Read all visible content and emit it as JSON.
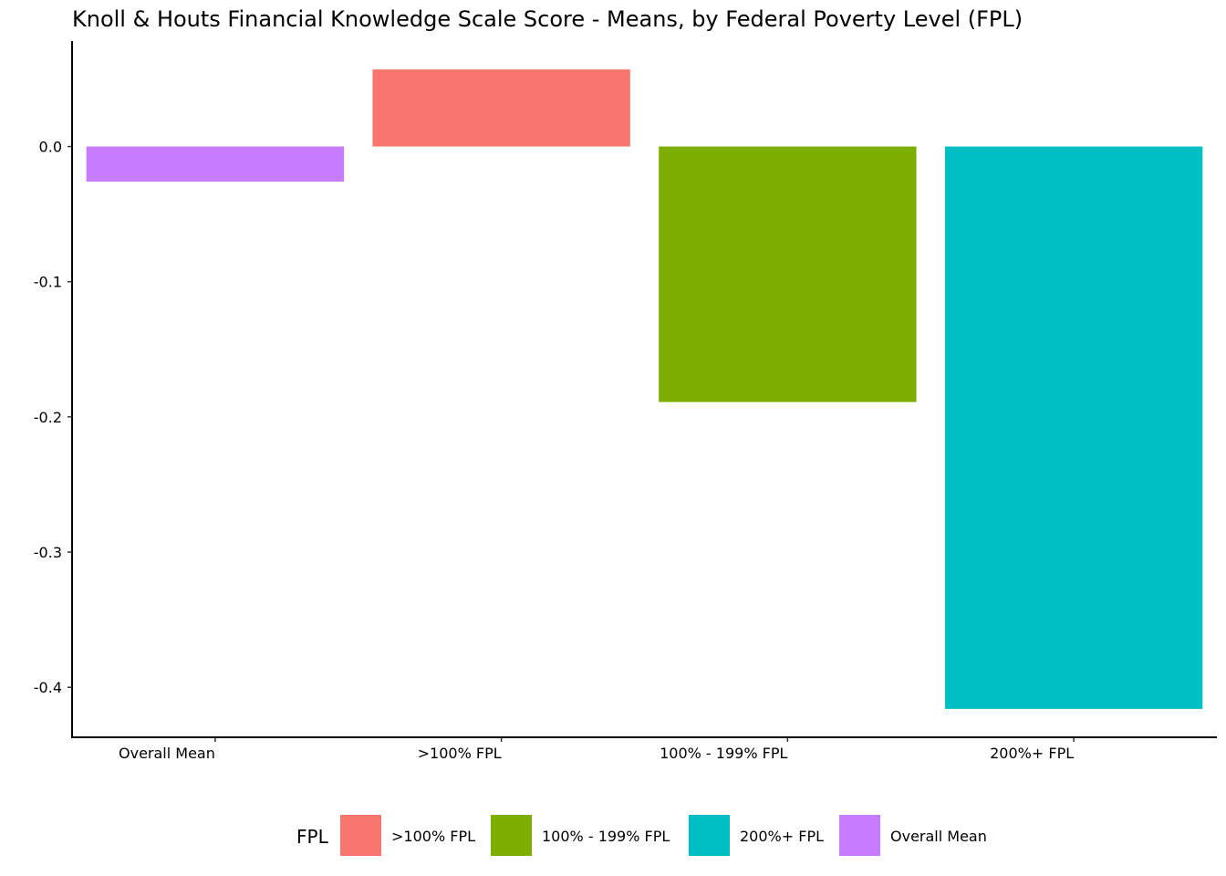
{
  "chart_data": {
    "type": "bar",
    "title": "Knoll & Houts Financial Knowledge Scale Score - Means, by Federal Poverty Level (FPL)",
    "xlabel": "",
    "ylabel": "",
    "categories": [
      "Overall Mean",
      ">100% FPL",
      "100% - 199% FPL",
      "200%+ FPL"
    ],
    "values": [
      -0.026,
      0.057,
      -0.189,
      -0.416
    ],
    "colors": [
      "#C77CFF",
      "#F8766D",
      "#7CAE00",
      "#00BFC4"
    ],
    "ylim": [
      -0.437,
      0.078
    ],
    "y_ticks": [
      0.0,
      -0.1,
      -0.2,
      -0.3,
      -0.4
    ],
    "y_tick_labels": [
      "0.0",
      "-0.1",
      "-0.2",
      "-0.3",
      "-0.4"
    ],
    "grid": false,
    "legend": {
      "title": "FPL",
      "position": "bottom",
      "entries": [
        {
          "label": ">100% FPL",
          "color": "#F8766D"
        },
        {
          "label": "100% - 199% FPL",
          "color": "#7CAE00"
        },
        {
          "label": "200%+ FPL",
          "color": "#00BFC4"
        },
        {
          "label": "Overall Mean",
          "color": "#C77CFF"
        }
      ]
    }
  }
}
